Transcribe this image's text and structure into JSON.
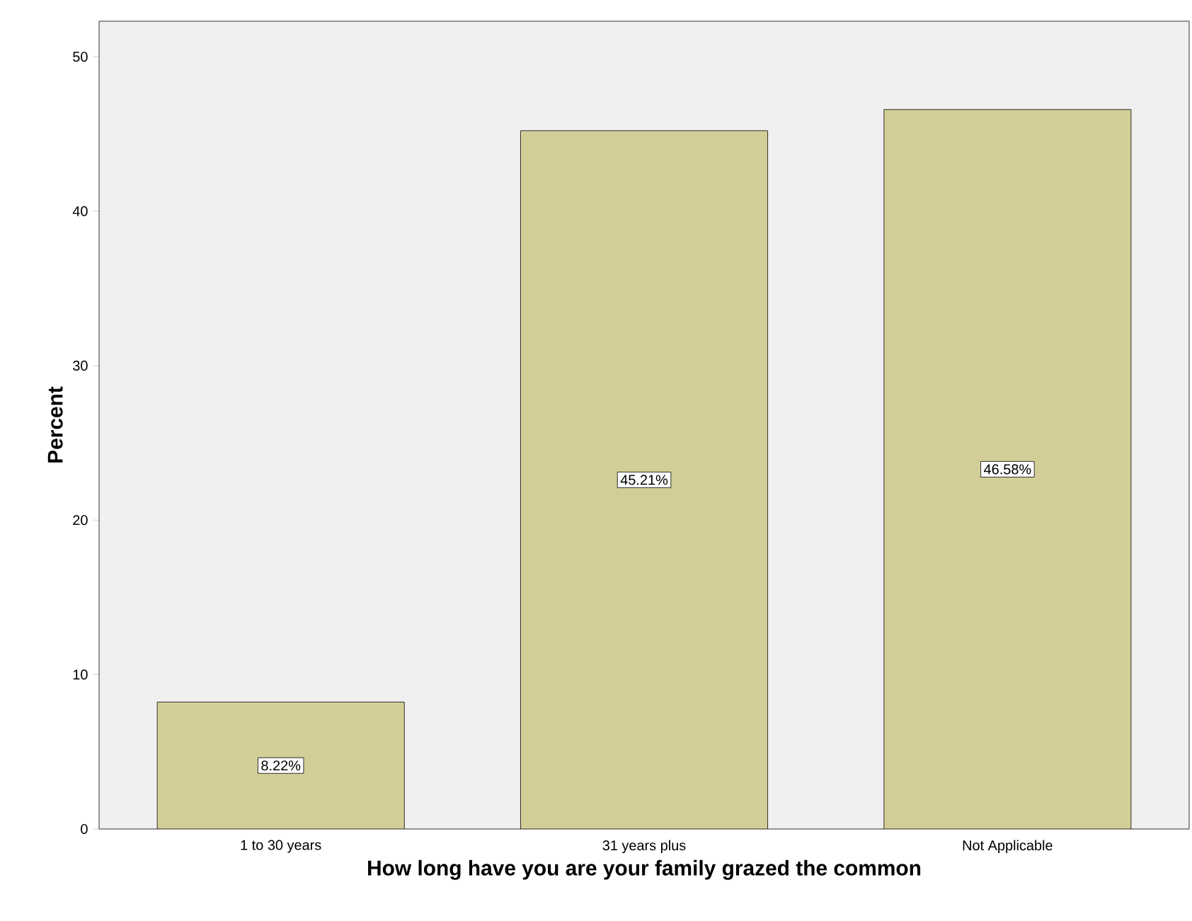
{
  "chart_data": {
    "type": "bar",
    "xlabel": "How long have you are your family grazed the common",
    "ylabel": "Percent",
    "categories": [
      "1 to 30 years",
      "31 years plus",
      "Not Applicable"
    ],
    "values": [
      8.22,
      45.21,
      46.58
    ],
    "value_labels": [
      "8.22%",
      "45.21%",
      "46.58%"
    ],
    "color": "#d3ce97",
    "ylim": [
      0,
      52.3
    ],
    "yticks": [
      0,
      10,
      20,
      30,
      40,
      50
    ]
  }
}
